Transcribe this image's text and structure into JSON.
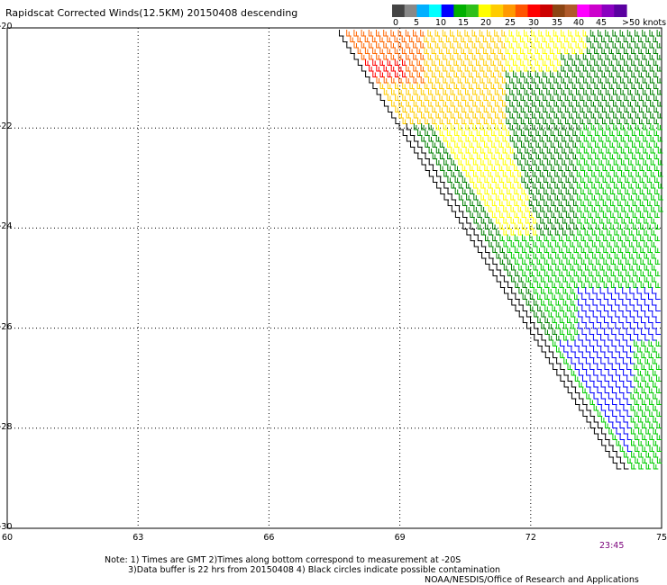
{
  "title": "Rapidscat Corrected Winds(12.5KM) 20150408 descending",
  "legend": {
    "labels": [
      "0",
      "5",
      "10",
      "15",
      "20",
      "25",
      "30",
      "35",
      "40",
      "45",
      ">50 knots"
    ],
    "colors": [
      "#444444",
      "#888888",
      "#00b0ff",
      "#00ffff",
      "#0000ff",
      "#00b000",
      "#2ec01a",
      "#fffe00",
      "#ffcc00",
      "#ff9900",
      "#ff5500",
      "#ff0000",
      "#cc0000",
      "#8b4513",
      "#b05a2a",
      "#ff00ff",
      "#cc00cc",
      "#8a00c0",
      "#5a00a0"
    ]
  },
  "map": {
    "lat_labels": [
      "-20",
      "-22",
      "-24",
      "-26",
      "-28",
      "-30"
    ],
    "lon_labels": [
      "60",
      "63",
      "66",
      "69",
      "72",
      "75"
    ],
    "barb_colors": {
      "lt10": "#000000",
      "10_15": "#0000ff",
      "15_20": "#00cc00",
      "20_25": "#008000",
      "25_30": "#ffff00",
      "30_35": "#ffcc00",
      "35_40": "#ff6600",
      "40_45": "#ff0000"
    }
  },
  "time_label": "23:45",
  "notes": {
    "line1": "Note: 1) Times are GMT 2)Times along bottom correspond to measurement at -20S",
    "line2": "3)Data buffer is 22 hrs from 20150408 4) Black circles indicate possible contamination",
    "line3": "NOAA/NESDIS/Office of Research and Applications"
  }
}
